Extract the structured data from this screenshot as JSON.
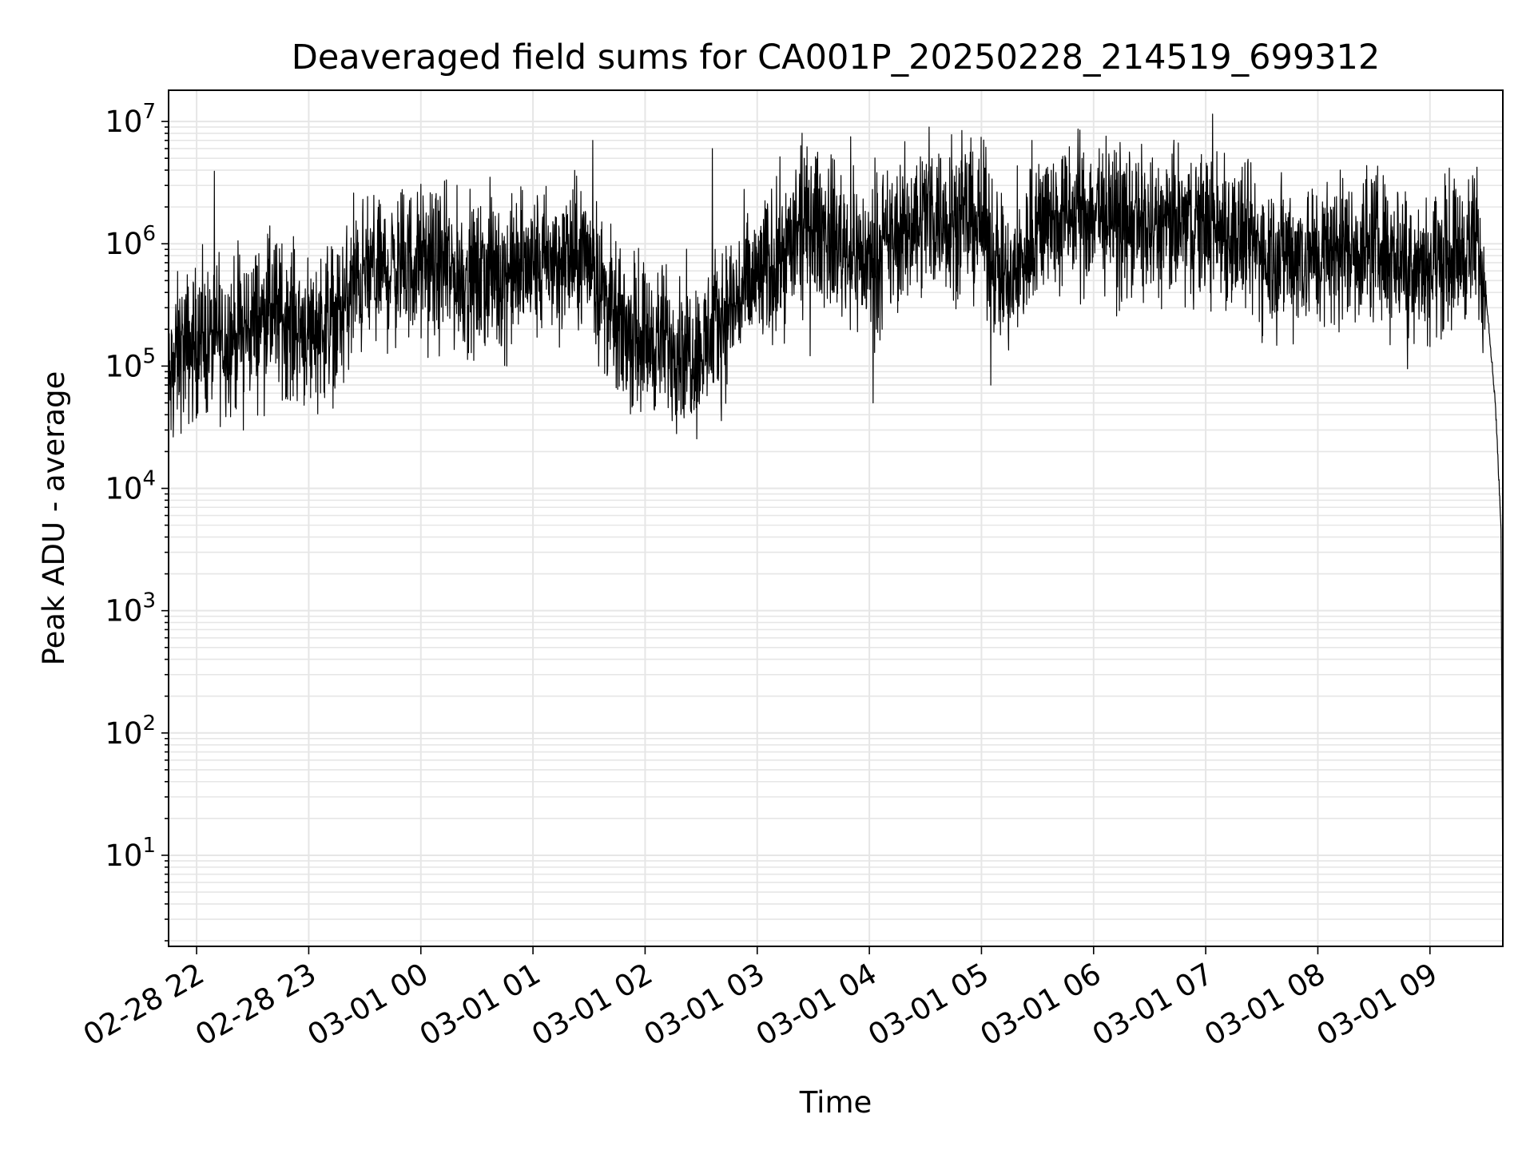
{
  "chart_data": {
    "type": "line",
    "title": "Deaveraged field sums for CA001P_20250228_214519_699312",
    "xlabel": "Time",
    "ylabel": "Peak ADU - average",
    "yscale": "log",
    "ylim": [
      1.8,
      18000000.0
    ],
    "xlim": [
      "2025-02-28 21:45",
      "2025-03-01 09:39"
    ],
    "grid": true,
    "grid_color": "#e6e6e6",
    "line_color": "#000000",
    "x_ticks": [
      {
        "t": "2025-02-28 22:00",
        "label": "02-28 22"
      },
      {
        "t": "2025-02-28 23:00",
        "label": "02-28 23"
      },
      {
        "t": "2025-03-01 00:00",
        "label": "03-01 00"
      },
      {
        "t": "2025-03-01 01:00",
        "label": "03-01 01"
      },
      {
        "t": "2025-03-01 02:00",
        "label": "03-01 02"
      },
      {
        "t": "2025-03-01 03:00",
        "label": "03-01 03"
      },
      {
        "t": "2025-03-01 04:00",
        "label": "03-01 04"
      },
      {
        "t": "2025-03-01 05:00",
        "label": "03-01 05"
      },
      {
        "t": "2025-03-01 06:00",
        "label": "03-01 06"
      },
      {
        "t": "2025-03-01 07:00",
        "label": "03-01 07"
      },
      {
        "t": "2025-03-01 08:00",
        "label": "03-01 08"
      },
      {
        "t": "2025-03-01 09:00",
        "label": "03-01 09"
      }
    ],
    "y_ticks": [
      {
        "base": "10",
        "exp": "1",
        "value": 10
      },
      {
        "base": "10",
        "exp": "2",
        "value": 100
      },
      {
        "base": "10",
        "exp": "3",
        "value": 1000
      },
      {
        "base": "10",
        "exp": "4",
        "value": 10000
      },
      {
        "base": "10",
        "exp": "5",
        "value": 100000
      },
      {
        "base": "10",
        "exp": "6",
        "value": 1000000
      },
      {
        "base": "10",
        "exp": "7",
        "value": 10000000
      }
    ],
    "series": [
      {
        "trend": [
          [
            "2025-02-28 21:45",
            60000
          ],
          [
            "2025-02-28 21:50",
            130000
          ],
          [
            "2025-02-28 22:00",
            150000
          ],
          [
            "2025-02-28 22:20",
            180000
          ],
          [
            "2025-02-28 22:40",
            280000
          ],
          [
            "2025-02-28 23:00",
            200000
          ],
          [
            "2025-02-28 23:15",
            250000
          ],
          [
            "2025-02-28 23:30",
            550000
          ],
          [
            "2025-03-01 00:00",
            700000
          ],
          [
            "2025-03-01 00:30",
            500000
          ],
          [
            "2025-03-01 01:00",
            650000
          ],
          [
            "2025-03-01 01:30",
            800000
          ],
          [
            "2025-03-01 01:45",
            200000
          ],
          [
            "2025-03-01 02:15",
            150000
          ],
          [
            "2025-03-01 02:30",
            130000
          ],
          [
            "2025-03-01 02:45",
            300000
          ],
          [
            "2025-03-01 03:00",
            500000
          ],
          [
            "2025-03-01 03:30",
            1500000
          ],
          [
            "2025-03-01 04:00",
            700000
          ],
          [
            "2025-03-01 04:30",
            1800000
          ],
          [
            "2025-03-01 05:00",
            1500000
          ],
          [
            "2025-03-01 05:15",
            400000
          ],
          [
            "2025-03-01 05:30",
            1500000
          ],
          [
            "2025-03-01 06:00",
            1800000
          ],
          [
            "2025-03-01 06:30",
            1300000
          ],
          [
            "2025-03-01 07:00",
            1500000
          ],
          [
            "2025-03-01 07:30",
            900000
          ],
          [
            "2025-03-01 08:00",
            800000
          ],
          [
            "2025-03-01 08:30",
            1000000
          ],
          [
            "2025-03-01 09:00",
            700000
          ],
          [
            "2025-03-01 09:25",
            1000000
          ],
          [
            "2025-03-01 09:30",
            400000
          ],
          [
            "2025-03-01 09:35",
            50000
          ],
          [
            "2025-03-01 09:38",
            5000
          ],
          [
            "2025-03-01 09:39",
            4
          ]
        ],
        "peaks": [
          [
            "2025-02-28 22:12",
            850000
          ],
          [
            "2025-02-28 22:25",
            30000
          ],
          [
            "2025-02-28 22:38",
            1200000
          ],
          [
            "2025-02-28 23:24",
            2600000
          ],
          [
            "2025-03-01 00:37",
            3500000
          ],
          [
            "2025-03-01 01:32",
            7000000
          ],
          [
            "2025-03-01 02:36",
            6000000
          ],
          [
            "2025-03-01 03:24",
            8000000
          ],
          [
            "2025-03-01 03:50",
            7500000
          ],
          [
            "2025-03-01 04:02",
            50000
          ],
          [
            "2025-03-01 04:32",
            9000000
          ],
          [
            "2025-03-01 04:44",
            7800000
          ],
          [
            "2025-03-01 05:05",
            70000
          ],
          [
            "2025-03-01 05:27",
            7000000
          ],
          [
            "2025-03-01 06:03",
            6000000
          ],
          [
            "2025-03-01 07:10",
            5500000
          ],
          [
            "2025-03-01 08:12",
            4000000
          ],
          [
            "2025-03-01 08:48",
            95000
          ],
          [
            "2025-03-01 09:23",
            3000000
          ]
        ],
        "point_interval_seconds": 10,
        "noise_decades": 0.3,
        "label": "",
        "note": ""
      }
    ]
  }
}
